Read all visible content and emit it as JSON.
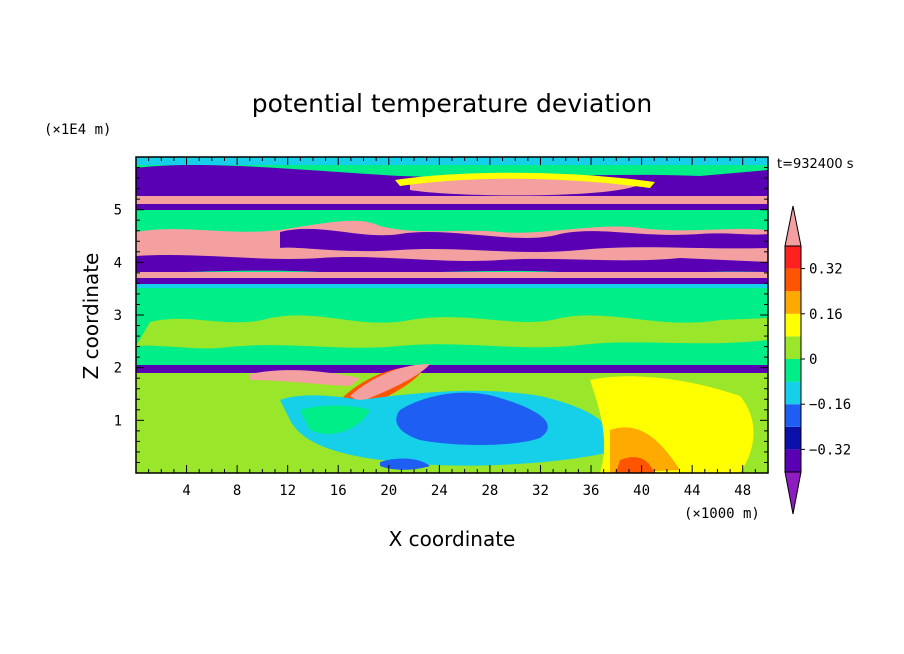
{
  "chart_data": {
    "type": "heatmap",
    "title": "potential temperature deviation",
    "xlabel": "X coordinate",
    "ylabel": "Z coordinate",
    "x_unit": "(×1000 m)",
    "y_unit": "(×1E4 m)",
    "time_label": "t=932400 s",
    "xlim": [
      0,
      50
    ],
    "ylim": [
      0,
      6
    ],
    "xticks": [
      4,
      8,
      12,
      16,
      20,
      24,
      28,
      32,
      36,
      40,
      44,
      48
    ],
    "yticks": [
      1,
      2,
      3,
      4,
      5
    ],
    "colorbar": {
      "levels": [
        -0.4,
        -0.32,
        -0.24,
        -0.16,
        -0.08,
        0,
        0.08,
        0.16,
        0.24,
        0.32,
        0.4
      ],
      "labels": [
        "0.32",
        "0.16",
        "0",
        "−0.16",
        "−0.32"
      ],
      "label_values": [
        0.32,
        0.16,
        0,
        -0.16,
        -0.32
      ],
      "colors": [
        "#8e1cc0",
        "#5a00b4",
        "#0a10a8",
        "#1f5ef2",
        "#16cfe8",
        "#00ee88",
        "#9ae62a",
        "#ffff00",
        "#ffaa00",
        "#ff5500",
        "#ff2020",
        "#f4a0a0"
      ],
      "extend": "both"
    },
    "bands": [
      {
        "z_range": [
          5.4,
          5.9
        ],
        "value": "below -0.4"
      },
      {
        "z_range": [
          5.0,
          5.2
        ],
        "value": "below -0.4"
      },
      {
        "z_range": [
          4.5,
          4.9
        ],
        "value": "mixed, above 0.4 and below -0.4"
      },
      {
        "z_range": [
          3.6,
          4.4
        ],
        "value": "mixed, above 0.4 and below -0.4"
      },
      {
        "z_range": [
          2.1,
          3.6
        ],
        "value": "0 to 0.08"
      },
      {
        "z_range": [
          1.95,
          2.05
        ],
        "value": "below -0.4"
      },
      {
        "z_range": [
          0,
          1.9
        ],
        "value": "0.08 to 0.16, with negative anomaly near x=20-30"
      }
    ]
  }
}
